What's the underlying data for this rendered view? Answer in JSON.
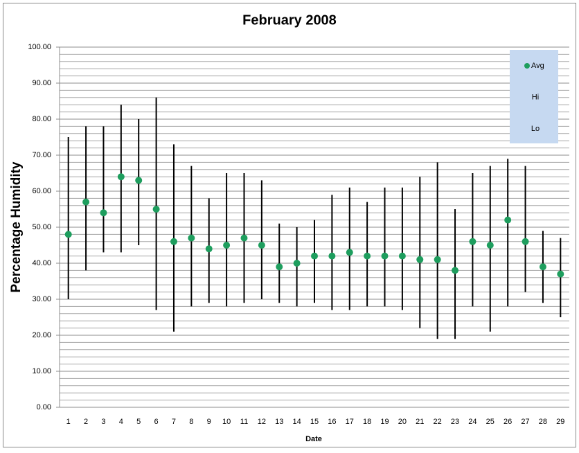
{
  "chart_data": {
    "type": "hilo",
    "title": "February 2008",
    "x_label": "Date",
    "y_label": "Percentage Humidity",
    "categories": [
      "1",
      "2",
      "3",
      "4",
      "5",
      "6",
      "7",
      "8",
      "9",
      "10",
      "11",
      "12",
      "13",
      "14",
      "15",
      "16",
      "17",
      "18",
      "19",
      "20",
      "21",
      "22",
      "23",
      "24",
      "25",
      "26",
      "27",
      "28",
      "29"
    ],
    "series": [
      {
        "name": "Avg",
        "color": "#1e9e5e",
        "values": [
          48,
          57,
          54,
          64,
          63,
          55,
          46,
          47,
          44,
          45,
          47,
          45,
          39,
          40,
          42,
          42,
          43,
          42,
          42,
          42,
          41,
          41,
          38,
          46,
          45,
          52,
          46,
          39,
          37
        ]
      },
      {
        "name": "Hi",
        "color": "#000000",
        "values": [
          75,
          78,
          78,
          84,
          80,
          86,
          73,
          67,
          58,
          65,
          65,
          63,
          51,
          50,
          52,
          59,
          61,
          57,
          61,
          61,
          64,
          68,
          55,
          65,
          67,
          69,
          67,
          49,
          47
        ]
      },
      {
        "name": "Lo",
        "color": "#000000",
        "values": [
          30,
          38,
          43,
          43,
          45,
          27,
          21,
          28,
          29,
          28,
          29,
          30,
          29,
          28,
          29,
          27,
          27,
          28,
          28,
          27,
          22,
          19,
          19,
          28,
          21,
          28,
          32,
          29,
          25
        ]
      }
    ],
    "ylim": [
      0,
      100
    ],
    "yticks": [
      {
        "value": 0,
        "label": "0.00"
      },
      {
        "value": 10,
        "label": "10.00"
      },
      {
        "value": 20,
        "label": "20.00"
      },
      {
        "value": 30,
        "label": "30.00"
      },
      {
        "value": 40,
        "label": "40.00"
      },
      {
        "value": 50,
        "label": "50.00"
      },
      {
        "value": 60,
        "label": "60.00"
      },
      {
        "value": 70,
        "label": "70.00"
      },
      {
        "value": 80,
        "label": "80.00"
      },
      {
        "value": 90,
        "label": "90.00"
      },
      {
        "value": 100,
        "label": "100.00"
      }
    ],
    "grid": true,
    "minor_grid": 2,
    "legend": "top-right"
  }
}
